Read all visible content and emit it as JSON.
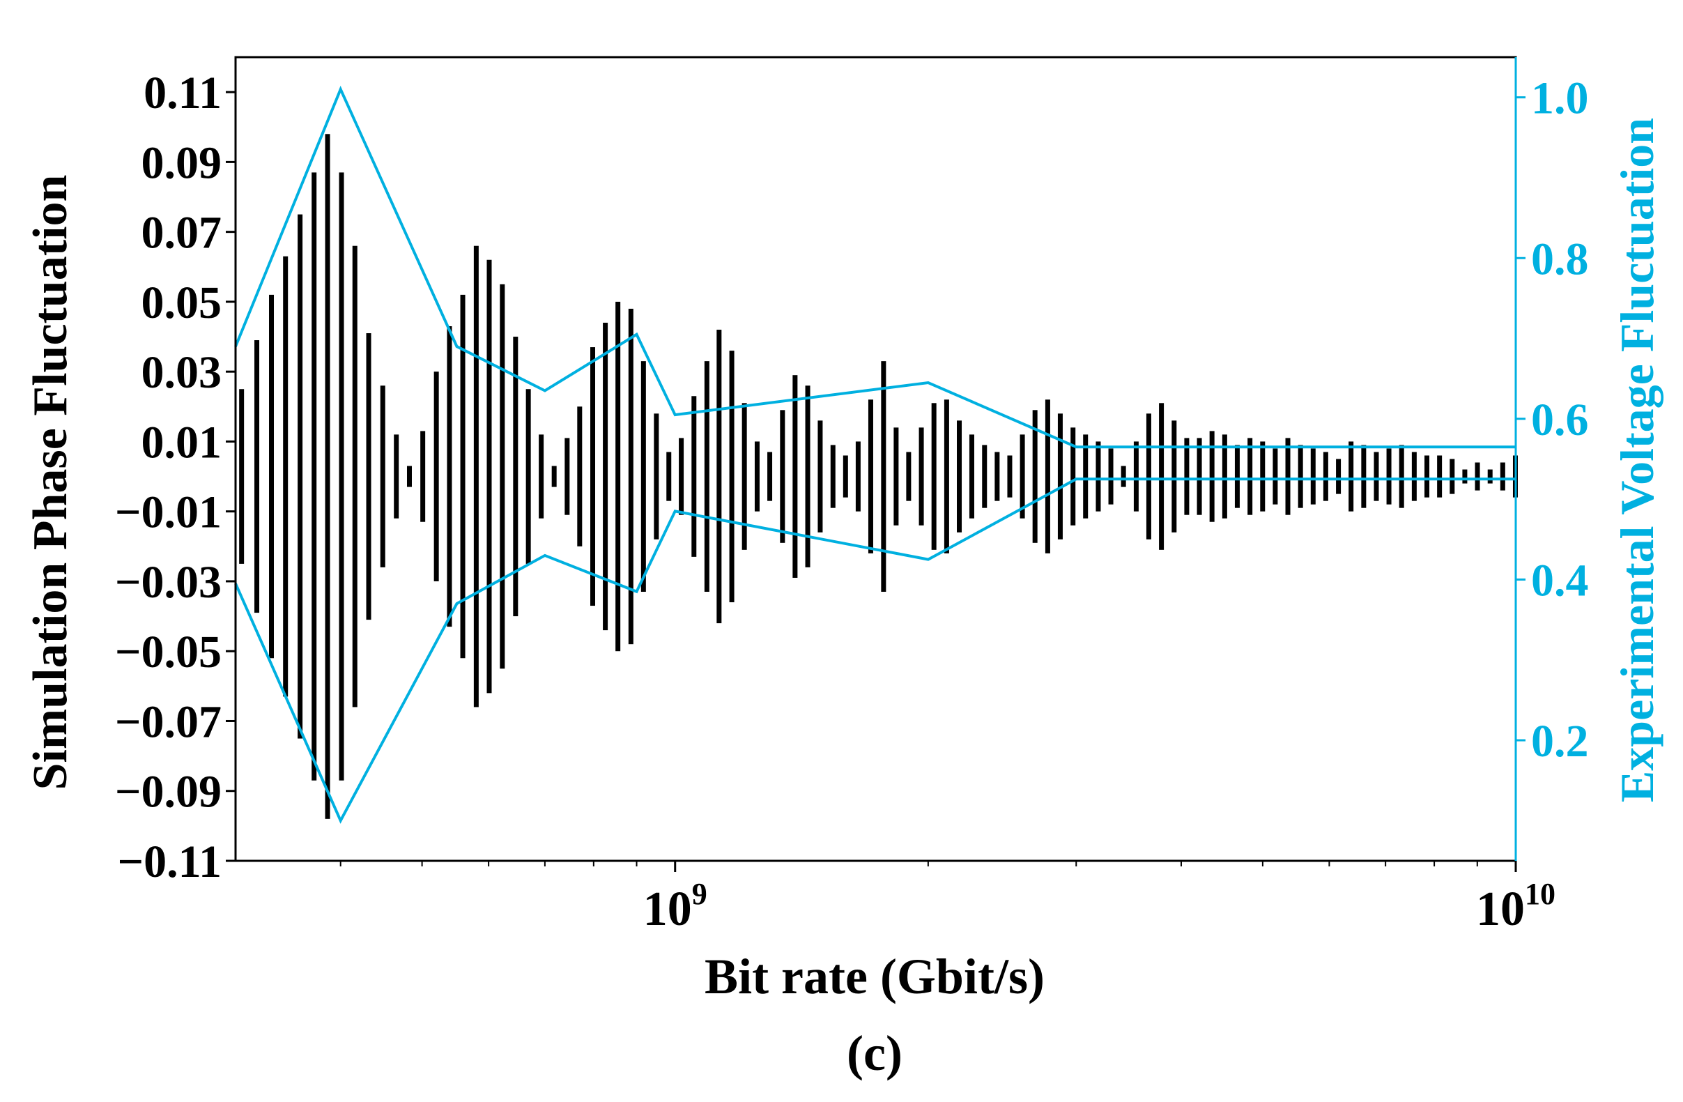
{
  "chart_data": {
    "type": "bar",
    "xlabel": "Bit rate (Gbit/s)",
    "ylabel": "Simulation Phase Fluctuation",
    "y2label": "Experimental Voltage Fluctuation",
    "caption": "(c)",
    "xscale": "log",
    "xlim": [
      300000000,
      10000000000
    ],
    "ylim": [
      -0.11,
      0.12
    ],
    "y2lim": [
      0.05,
      1.05
    ],
    "x_tick_labels": [
      {
        "base": "10",
        "exp": "9",
        "value": 1000000000
      },
      {
        "base": "10",
        "exp": "10",
        "value": 10000000000
      }
    ],
    "y_ticks": [
      0.11,
      0.09,
      0.07,
      0.05,
      0.03,
      0.01,
      -0.01,
      -0.03,
      -0.05,
      -0.07,
      -0.09,
      -0.11
    ],
    "y_tick_labels": [
      "0.11",
      "0.09",
      "0.07",
      "0.05",
      "0.03",
      "0.01",
      "−0.01",
      "−0.03",
      "−0.05",
      "−0.07",
      "−0.09",
      "−0.11"
    ],
    "y2_ticks": [
      1.0,
      0.8,
      0.6,
      0.4,
      0.2
    ],
    "y2_tick_labels": [
      "1.0",
      "0.8",
      "0.6",
      "0.4",
      "0.2"
    ],
    "colors": {
      "simulation": "#000000",
      "experimental": "#00b0e0"
    },
    "series": [
      {
        "kind": "symmetric-bars",
        "x": [
          305000000,
          318000000,
          331000000,
          344000000,
          358000000,
          372000000,
          386000000,
          401000000,
          416000000,
          432000000,
          449000000,
          466000000,
          483000000,
          501000000,
          520000000,
          539000000,
          559000000,
          580000000,
          601000000,
          623000000,
          646000000,
          669000000,
          693000000,
          718000000,
          744000000,
          770000000,
          798000000,
          826000000,
          855000000,
          886000000,
          917000000,
          950000000,
          983000000,
          1017000000,
          1053000000,
          1091000000,
          1128000000,
          1168000000,
          1209000000,
          1252000000,
          1296000000,
          1342000000,
          1389000000,
          1438000000,
          1488000000,
          1541000000,
          1595000000,
          1651000000,
          1709000000,
          1770000000,
          1832000000,
          1896000000,
          1963000000,
          2032000000,
          2104000000,
          2178000000,
          2254000000,
          2334000000,
          2416000000,
          2501000000,
          2589000000,
          2680000000,
          2775000000,
          2872000000,
          2974000000,
          3078000000,
          3187000000,
          3299000000,
          3415000000,
          3536000000,
          3660000000,
          3789000000,
          3923000000,
          4061000000,
          4204000000,
          4352000000,
          4506000000,
          4664000000,
          4829000000,
          4999000000,
          5175000000,
          5357000000,
          5546000000,
          5741000000,
          5943000000,
          6153000000,
          6369000000,
          6594000000,
          6826000000,
          7066000000,
          7315000000,
          7573000000,
          7840000000,
          8116000000,
          8402000000,
          8698000000,
          9004000000,
          9322000000,
          9650000000,
          9990000000
        ],
        "values": [
          0.025,
          0.039,
          0.052,
          0.063,
          0.075,
          0.087,
          0.098,
          0.087,
          0.066,
          0.041,
          0.026,
          0.012,
          0.003,
          0.013,
          0.03,
          0.043,
          0.052,
          0.066,
          0.062,
          0.055,
          0.04,
          0.025,
          0.012,
          0.003,
          0.011,
          0.02,
          0.037,
          0.044,
          0.05,
          0.048,
          0.033,
          0.018,
          0.007,
          0.011,
          0.023,
          0.033,
          0.042,
          0.036,
          0.021,
          0.01,
          0.007,
          0.019,
          0.029,
          0.026,
          0.016,
          0.009,
          0.006,
          0.01,
          0.022,
          0.033,
          0.014,
          0.007,
          0.014,
          0.021,
          0.022,
          0.016,
          0.012,
          0.009,
          0.007,
          0.006,
          0.012,
          0.019,
          0.022,
          0.018,
          0.014,
          0.012,
          0.01,
          0.008,
          0.003,
          0.01,
          0.018,
          0.021,
          0.016,
          0.011,
          0.011,
          0.013,
          0.012,
          0.009,
          0.011,
          0.01,
          0.008,
          0.011,
          0.009,
          0.008,
          0.007,
          0.005,
          0.01,
          0.009,
          0.007,
          0.008,
          0.009,
          0.007,
          0.006,
          0.006,
          0.005,
          0.002,
          0.004,
          0.002,
          0.004,
          0.006
        ]
      },
      {
        "kind": "envelope-upper",
        "x": [
          300000000,
          400000000,
          550000000,
          700000000,
          900000000,
          1000000000,
          2000000000,
          3000000000,
          6000000000,
          8000000000,
          10000000000
        ],
        "values": [
          0.69,
          1.01,
          0.69,
          0.635,
          0.705,
          0.605,
          0.645,
          0.565,
          0.565,
          0.565,
          0.565
        ]
      },
      {
        "kind": "envelope-lower",
        "x": [
          300000000,
          400000000,
          550000000,
          700000000,
          900000000,
          1000000000,
          2000000000,
          3000000000,
          6000000000,
          8000000000,
          10000000000
        ],
        "values": [
          0.395,
          0.1,
          0.37,
          0.43,
          0.385,
          0.485,
          0.425,
          0.525,
          0.525,
          0.525,
          0.525
        ]
      }
    ]
  }
}
